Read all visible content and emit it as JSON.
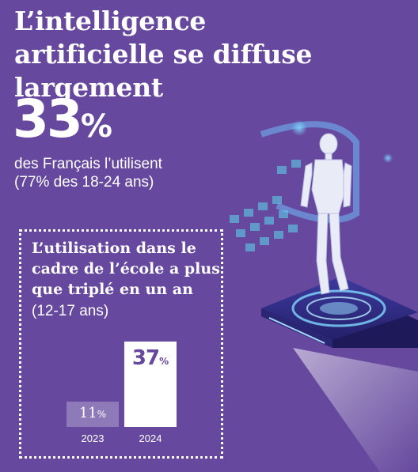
{
  "title": "L’intelligence artificielle se diffuse largement",
  "stat": {
    "value": "33",
    "unit": "%"
  },
  "subtitle_line1": "des Français l’utilisent",
  "subtitle_line2": "(77% des 18-24 ans)",
  "box": {
    "text_bold": "L’utilisation dans le cadre de l’école a plus que triplé en un an",
    "text_normal": " (12-17 ans)"
  },
  "chart_data": {
    "type": "bar",
    "categories": [
      "2023",
      "2024"
    ],
    "values": [
      11,
      37
    ],
    "value_labels": [
      {
        "num": "11",
        "unit": "%"
      },
      {
        "num": "37",
        "unit": "%"
      }
    ]
  },
  "illustration_icon": "robot-on-chip-illustration",
  "colors": {
    "background": "#66499e",
    "bar_2023": "#8e7ab8",
    "bar_2024": "#ffffff"
  }
}
